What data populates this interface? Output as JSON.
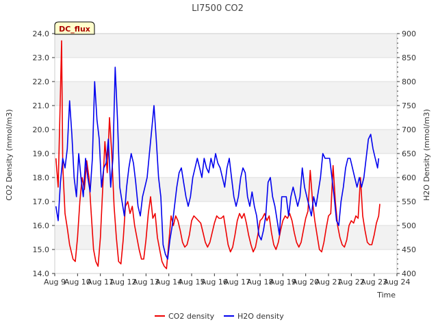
{
  "chart_data": {
    "type": "line",
    "title": "LI7500 CO2",
    "xlabel": "Time",
    "ylabel": "CO2 Density (mmol/m3)",
    "y2label": "H2O Density (mmol/m3)",
    "xlim": [
      9,
      24
    ],
    "ylim": [
      14.0,
      24.0
    ],
    "y2lim": [
      400,
      900
    ],
    "x_ticks": [
      9,
      10,
      11,
      12,
      13,
      14,
      15,
      16,
      17,
      18,
      19,
      20,
      21,
      22,
      23,
      24
    ],
    "x_tick_labels": [
      "Aug 9",
      "Aug 10",
      "Aug 11",
      "Aug 12",
      "Aug 13",
      "Aug 14",
      "Aug 15",
      "Aug 16",
      "Aug 17",
      "Aug 18",
      "Aug 19",
      "Aug 20",
      "Aug 21",
      "Aug 22",
      "Aug 23",
      "Aug 24"
    ],
    "y_ticks": [
      14.0,
      15.0,
      16.0,
      17.0,
      18.0,
      19.0,
      20.0,
      21.0,
      22.0,
      23.0,
      24.0
    ],
    "y_tick_labels": [
      "14.0",
      "15.0",
      "16.0",
      "17.0",
      "18.0",
      "19.0",
      "20.0",
      "21.0",
      "22.0",
      "23.0",
      "24.0"
    ],
    "y2_ticks": [
      400,
      450,
      500,
      550,
      600,
      650,
      700,
      750,
      800,
      850,
      900
    ],
    "y2_tick_labels": [
      "400",
      "450",
      "500",
      "550",
      "600",
      "650",
      "700",
      "750",
      "800",
      "850",
      "900"
    ],
    "annotation": "DC_flux",
    "legend_position": "bottom-center",
    "series": [
      {
        "name": "CO2 density",
        "axis": "left",
        "color": "#ee0000",
        "x": [
          9.05,
          9.15,
          9.25,
          9.3,
          9.35,
          9.45,
          9.55,
          9.65,
          9.8,
          9.9,
          10.0,
          10.1,
          10.2,
          10.3,
          10.4,
          10.5,
          10.6,
          10.7,
          10.8,
          10.9,
          11.0,
          11.1,
          11.2,
          11.3,
          11.4,
          11.5,
          11.6,
          11.7,
          11.8,
          11.9,
          12.0,
          12.1,
          12.2,
          12.3,
          12.4,
          12.5,
          12.6,
          12.7,
          12.8,
          12.9,
          13.0,
          13.1,
          13.2,
          13.3,
          13.4,
          13.5,
          13.6,
          13.7,
          13.8,
          13.9,
          14.0,
          14.1,
          14.2,
          14.3,
          14.4,
          14.5,
          14.6,
          14.7,
          14.8,
          14.9,
          15.0,
          15.1,
          15.2,
          15.3,
          15.4,
          15.5,
          15.6,
          15.7,
          15.8,
          15.9,
          16.0,
          16.1,
          16.2,
          16.3,
          16.4,
          16.5,
          16.6,
          16.7,
          16.8,
          16.9,
          17.0,
          17.1,
          17.2,
          17.3,
          17.4,
          17.5,
          17.6,
          17.7,
          17.8,
          17.9,
          18.0,
          18.1,
          18.2,
          18.3,
          18.4,
          18.5,
          18.6,
          18.7,
          18.8,
          18.9,
          19.0,
          19.1,
          19.2,
          19.3,
          19.4,
          19.5,
          19.6,
          19.7,
          19.8,
          19.9,
          20.0,
          20.1,
          20.2,
          20.3,
          20.4,
          20.5,
          20.6,
          20.7,
          20.8,
          20.9,
          21.0,
          21.1,
          21.2,
          21.3,
          21.4,
          21.5,
          21.6,
          21.7,
          21.8,
          21.9,
          22.0,
          22.1,
          22.2,
          22.3,
          22.4,
          22.5,
          22.6,
          22.7,
          22.8,
          22.9,
          23.0,
          23.1,
          23.2,
          23.25
        ],
        "values": [
          18.8,
          17.6,
          21.5,
          23.7,
          18.5,
          16.5,
          15.9,
          15.2,
          14.6,
          14.5,
          15.5,
          17.0,
          18.0,
          17.5,
          18.7,
          18.0,
          16.5,
          15.0,
          14.5,
          14.3,
          15.5,
          17.5,
          19.5,
          18.2,
          20.5,
          19.0,
          16.8,
          15.5,
          14.5,
          14.4,
          15.4,
          16.8,
          17.0,
          16.5,
          16.8,
          16.0,
          15.5,
          15.0,
          14.6,
          14.6,
          15.4,
          16.5,
          17.2,
          16.3,
          16.5,
          15.5,
          15.0,
          14.5,
          14.3,
          14.2,
          15.3,
          16.4,
          16.0,
          16.4,
          16.2,
          15.8,
          15.3,
          15.1,
          15.2,
          15.6,
          16.2,
          16.4,
          16.3,
          16.2,
          16.1,
          15.7,
          15.3,
          15.1,
          15.3,
          15.7,
          16.1,
          16.4,
          16.3,
          16.3,
          16.4,
          15.8,
          15.2,
          14.9,
          15.1,
          15.6,
          16.2,
          16.5,
          16.3,
          16.5,
          16.1,
          15.6,
          15.2,
          14.9,
          15.1,
          15.6,
          16.2,
          16.3,
          16.5,
          16.2,
          16.4,
          15.7,
          15.2,
          15.0,
          15.3,
          15.8,
          16.2,
          16.4,
          16.3,
          16.5,
          16.2,
          15.7,
          15.3,
          15.1,
          15.3,
          15.8,
          16.3,
          16.6,
          18.3,
          17.0,
          16.2,
          15.6,
          15.0,
          14.9,
          15.3,
          15.9,
          16.4,
          16.5,
          18.5,
          17.0,
          16.0,
          15.5,
          15.2,
          15.1,
          15.4,
          16.0,
          16.2,
          16.1,
          16.4,
          16.3,
          18.0,
          16.4,
          15.8,
          15.3,
          15.2,
          15.2,
          15.6,
          16.1,
          16.4,
          16.9
        ]
      },
      {
        "name": "H2O density",
        "axis": "right",
        "color": "#0000ee",
        "x": [
          9.05,
          9.15,
          9.25,
          9.35,
          9.45,
          9.55,
          9.65,
          9.75,
          9.85,
          9.95,
          10.05,
          10.15,
          10.25,
          10.35,
          10.45,
          10.55,
          10.65,
          10.75,
          10.85,
          10.95,
          11.05,
          11.15,
          11.25,
          11.35,
          11.45,
          11.55,
          11.65,
          11.75,
          11.85,
          11.95,
          12.05,
          12.15,
          12.25,
          12.35,
          12.45,
          12.55,
          12.65,
          12.75,
          12.85,
          12.95,
          13.05,
          13.15,
          13.25,
          13.35,
          13.45,
          13.55,
          13.65,
          13.75,
          13.85,
          13.95,
          14.05,
          14.15,
          14.25,
          14.35,
          14.45,
          14.55,
          14.65,
          14.75,
          14.85,
          14.95,
          15.05,
          15.15,
          15.25,
          15.35,
          15.45,
          15.55,
          15.65,
          15.75,
          15.85,
          15.95,
          16.05,
          16.15,
          16.25,
          16.35,
          16.45,
          16.55,
          16.65,
          16.75,
          16.85,
          16.95,
          17.05,
          17.15,
          17.25,
          17.35,
          17.45,
          17.55,
          17.65,
          17.75,
          17.85,
          17.95,
          18.05,
          18.15,
          18.25,
          18.35,
          18.45,
          18.55,
          18.65,
          18.75,
          18.85,
          18.95,
          19.05,
          19.15,
          19.25,
          19.35,
          19.45,
          19.55,
          19.65,
          19.75,
          19.85,
          19.95,
          20.05,
          20.15,
          20.25,
          20.35,
          20.45,
          20.55,
          20.65,
          20.75,
          20.85,
          20.95,
          21.05,
          21.15,
          21.25,
          21.35,
          21.45,
          21.55,
          21.65,
          21.75,
          21.85,
          21.95,
          22.05,
          22.15,
          22.25,
          22.35,
          22.45,
          22.55,
          22.65,
          22.75,
          22.85,
          22.95,
          23.05,
          23.15,
          23.2
        ],
        "values": [
          540,
          510,
          590,
          640,
          620,
          660,
          760,
          690,
          600,
          560,
          650,
          600,
          560,
          640,
          600,
          570,
          640,
          800,
          720,
          680,
          580,
          620,
          630,
          680,
          580,
          640,
          830,
          720,
          580,
          550,
          520,
          580,
          620,
          650,
          630,
          590,
          540,
          520,
          560,
          580,
          600,
          650,
          700,
          750,
          680,
          600,
          560,
          460,
          440,
          430,
          470,
          500,
          540,
          580,
          610,
          620,
          590,
          560,
          540,
          560,
          600,
          620,
          640,
          620,
          600,
          640,
          620,
          610,
          640,
          620,
          650,
          630,
          620,
          600,
          580,
          620,
          640,
          600,
          560,
          540,
          560,
          600,
          620,
          610,
          560,
          540,
          570,
          540,
          520,
          480,
          470,
          490,
          520,
          590,
          600,
          560,
          540,
          510,
          480,
          560,
          560,
          560,
          520,
          560,
          580,
          560,
          540,
          560,
          620,
          580,
          560,
          540,
          520,
          560,
          540,
          570,
          600,
          650,
          640,
          640,
          640,
          600,
          560,
          510,
          500,
          550,
          580,
          620,
          640,
          640,
          620,
          600,
          580,
          600,
          580,
          600,
          640,
          680,
          690,
          660,
          640,
          620,
          640
        ]
      }
    ]
  }
}
